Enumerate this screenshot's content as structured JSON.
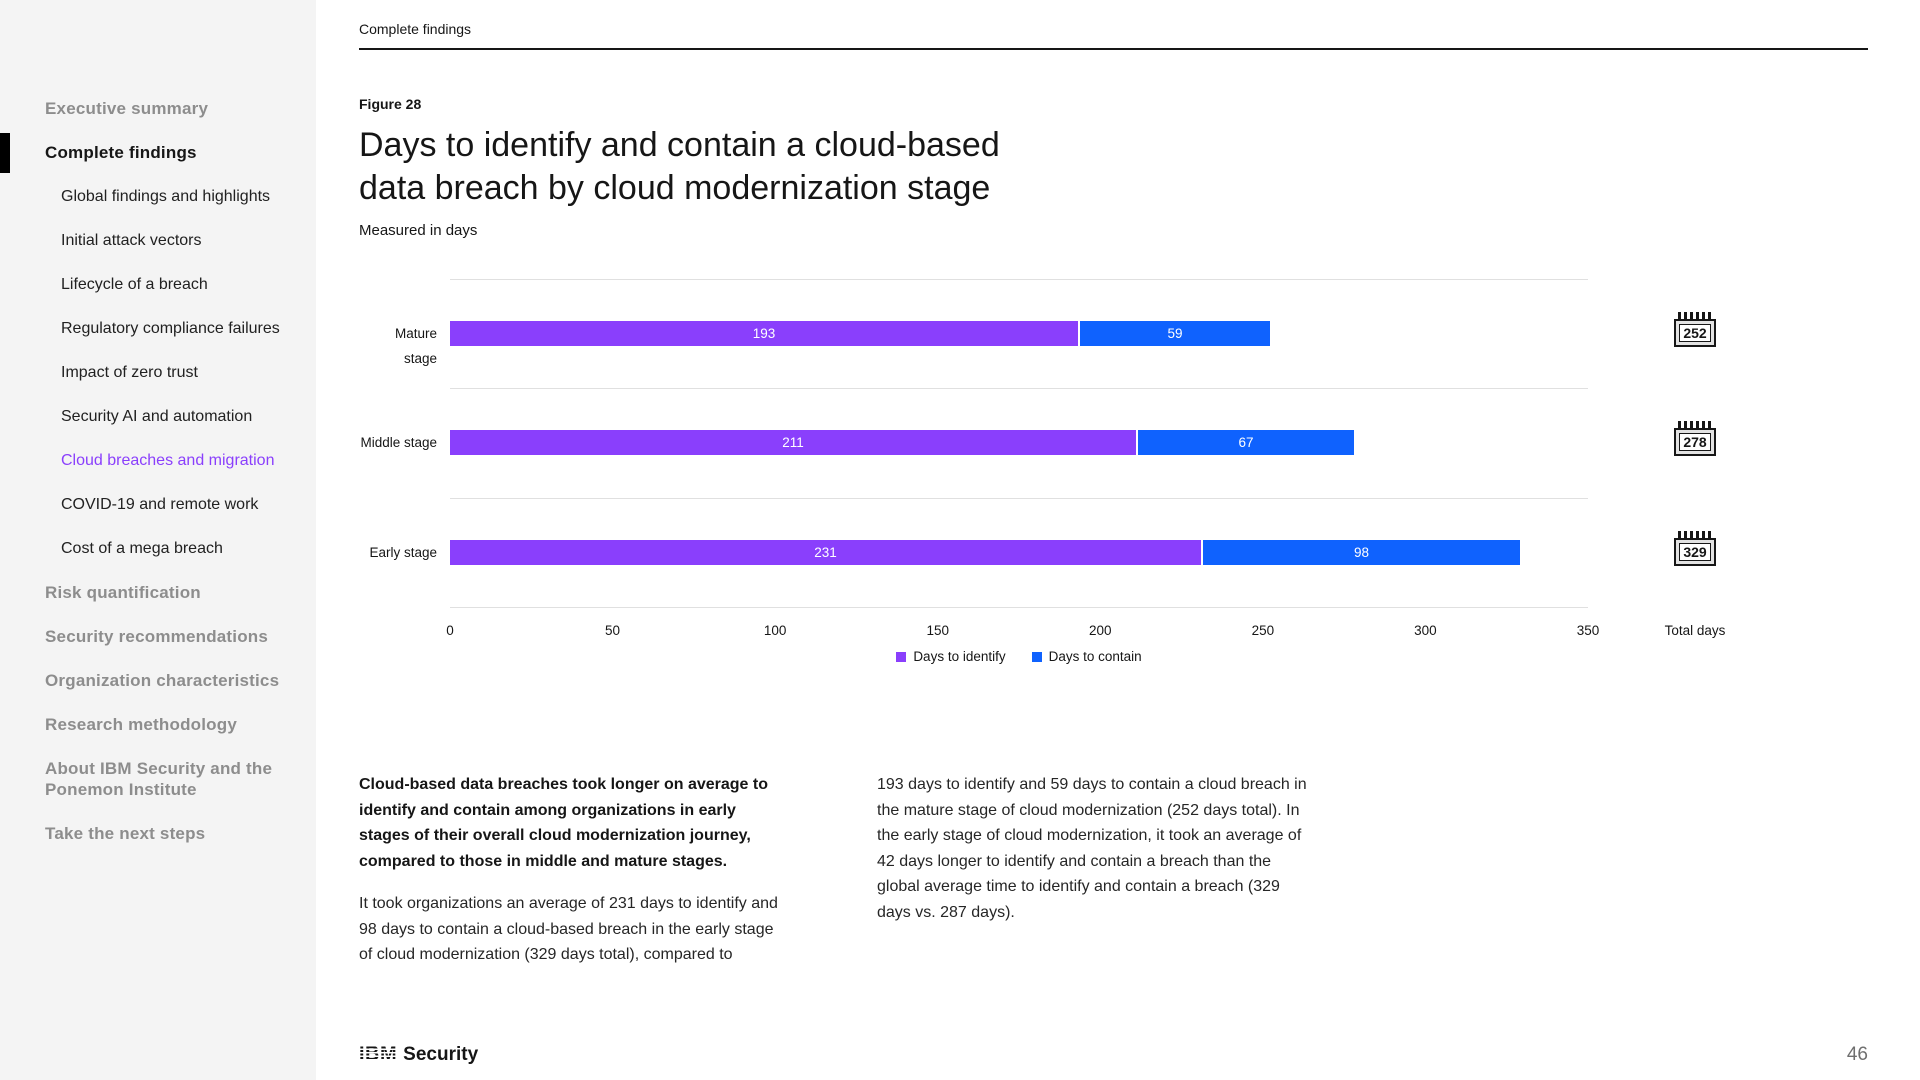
{
  "header": {
    "section_label": "Complete findings"
  },
  "sidebar": {
    "items": [
      {
        "label": "Executive summary",
        "level": 1,
        "state": ""
      },
      {
        "label": "Complete findings",
        "level": 1,
        "state": "active-section"
      },
      {
        "label": "Global findings and highlights",
        "level": 2,
        "state": ""
      },
      {
        "label": "Initial attack vectors",
        "level": 2,
        "state": ""
      },
      {
        "label": "Lifecycle of a breach",
        "level": 2,
        "state": ""
      },
      {
        "label": "Regulatory compliance failures",
        "level": 2,
        "state": ""
      },
      {
        "label": "Impact of zero trust",
        "level": 2,
        "state": ""
      },
      {
        "label": "Security AI and automation",
        "level": 2,
        "state": ""
      },
      {
        "label": "Cloud breaches and migration",
        "level": 2,
        "state": "active"
      },
      {
        "label": "COVID-19 and remote work",
        "level": 2,
        "state": ""
      },
      {
        "label": "Cost of a mega breach",
        "level": 2,
        "state": ""
      },
      {
        "label": "Risk quantification",
        "level": 1,
        "state": ""
      },
      {
        "label": "Security recommendations",
        "level": 1,
        "state": ""
      },
      {
        "label": "Organization characteristics",
        "level": 1,
        "state": ""
      },
      {
        "label": "Research methodology",
        "level": 1,
        "state": ""
      },
      {
        "label": "About IBM Security and the Ponemon Institute",
        "level": 1,
        "state": ""
      },
      {
        "label": "Take the next steps",
        "level": 1,
        "state": ""
      }
    ]
  },
  "figure": {
    "label": "Figure 28",
    "title_line1": "Days to identify and contain a cloud-based",
    "title_line2": "data breach by cloud modernization stage",
    "subtitle": "Measured in days"
  },
  "chart_data": {
    "type": "bar",
    "orientation": "horizontal",
    "stacked": true,
    "title": "Days to identify and contain a cloud-based data breach by cloud modernization stage",
    "subtitle": "Measured in days",
    "categories": [
      "Mature stage",
      "Middle stage",
      "Early stage"
    ],
    "series": [
      {
        "name": "Days to identify",
        "color": "#8a3ffc",
        "values": [
          193,
          211,
          231
        ]
      },
      {
        "name": "Days to contain",
        "color": "#0f62fe",
        "values": [
          59,
          67,
          98
        ]
      }
    ],
    "totals": {
      "label": "Total days",
      "values": [
        252,
        278,
        329
      ]
    },
    "x_ticks": [
      "0",
      "50",
      "100",
      "150",
      "200",
      "250",
      "300",
      "350"
    ],
    "xlim": [
      0,
      350
    ],
    "grid": "horizontal-row-separators",
    "legend_position": "bottom-center"
  },
  "body": {
    "left_bold": "Cloud-based data breaches took longer on average to identify and contain among organizations in early stages of their overall cloud modernization journey, compared to those in middle and mature stages.",
    "left_regular": "It took organizations an average of 231 days to identify and 98 days to contain a cloud-based breach in the early stage of cloud modernization (329 days total), compared to",
    "right": "193 days to identify and 59 days to contain a cloud breach in the mature stage of cloud modernization (252 days total). In the early stage of cloud modernization, it took an average of 42 days longer to identify and contain a breach than the global average time to identify and contain a breach (329 days vs. 287 days)."
  },
  "footer": {
    "brand_ibm": "IBM",
    "brand_security": "Security",
    "page_number": "46"
  }
}
